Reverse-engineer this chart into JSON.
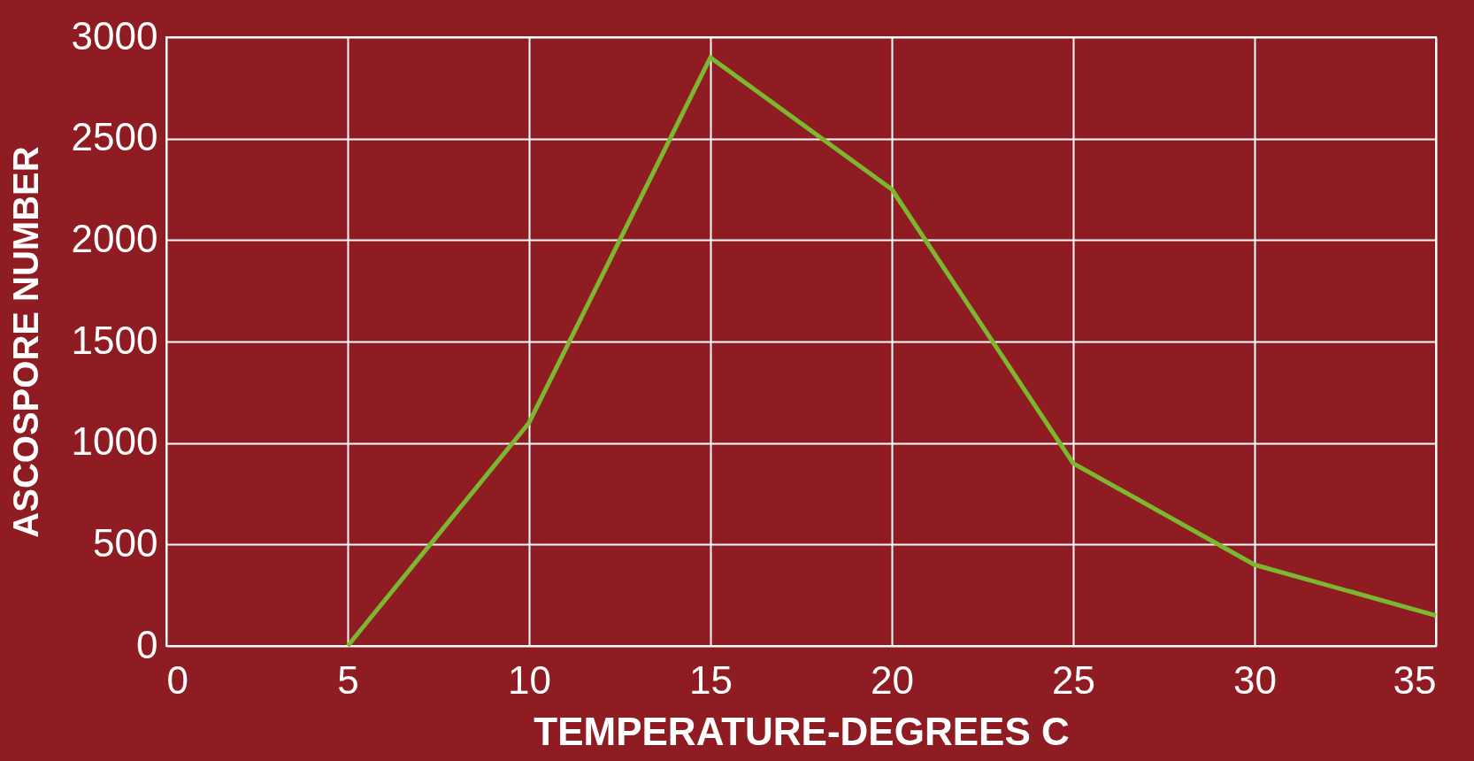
{
  "chart_data": {
    "type": "line",
    "xlabel": "TEMPERATURE-DEGREES C",
    "ylabel": "ASCOSPORE NUMBER",
    "x": [
      5,
      10,
      15,
      20,
      25,
      30,
      35
    ],
    "series": [
      {
        "color": "#7cb82f",
        "values": [
          0,
          1100,
          2900,
          2250,
          900,
          400,
          150
        ]
      }
    ],
    "xlim": [
      0,
      35
    ],
    "xticks": [
      0,
      5,
      10,
      15,
      20,
      25,
      30,
      35
    ],
    "ylim": [
      0,
      3000
    ],
    "yticks": [
      0,
      500,
      1000,
      1500,
      2000,
      2500,
      3000
    ],
    "grid": true,
    "marker": "none",
    "line_style": "solid"
  }
}
